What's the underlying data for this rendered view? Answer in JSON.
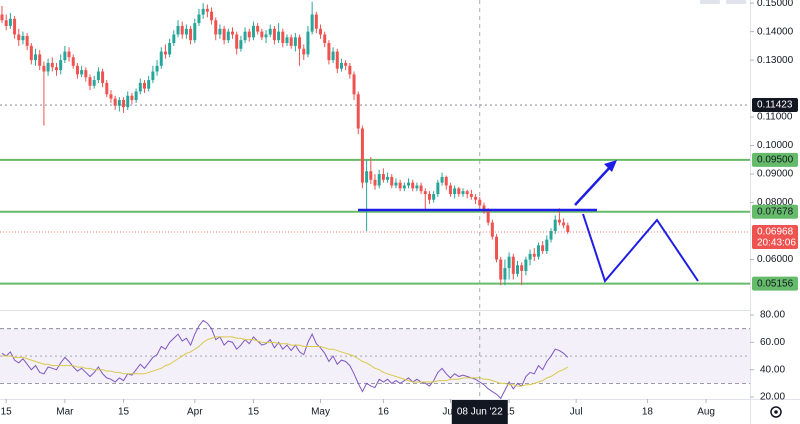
{
  "chart_data": {
    "type": "candlestick",
    "up_color": "#26a69a",
    "down_color": "#ef5350",
    "xlim": [
      "2022-02-14",
      "2022-08-11"
    ],
    "xticks": [
      {
        "value": "2022-02-15",
        "label": "15"
      },
      {
        "value": "2022-03-01",
        "label": "Mar"
      },
      {
        "value": "2022-03-15",
        "label": "15"
      },
      {
        "value": "2022-04-01",
        "label": "Apr"
      },
      {
        "value": "2022-04-15",
        "label": "15"
      },
      {
        "value": "2022-05-01",
        "label": "May"
      },
      {
        "value": "2022-05-16",
        "label": "16"
      },
      {
        "value": "2022-06-01",
        "label": "Jun"
      },
      {
        "value": "2022-06-15",
        "label": "15"
      },
      {
        "value": "2022-07-01",
        "label": "Jul"
      },
      {
        "value": "2022-07-18",
        "label": "18"
      },
      {
        "value": "2022-08-01",
        "label": "Aug"
      }
    ],
    "ylim": [
      0.0423,
      0.1511
    ],
    "yticks": [
      {
        "value": 0.15,
        "label": "0.15000"
      },
      {
        "value": 0.14,
        "label": "0.14000"
      },
      {
        "value": 0.13,
        "label": "0.13000"
      },
      {
        "value": 0.11,
        "label": "0.11000"
      },
      {
        "value": 0.1,
        "label": "0.10000"
      },
      {
        "value": 0.09,
        "label": "0.09000"
      },
      {
        "value": 0.08,
        "label": "0.08000"
      },
      {
        "value": 0.06,
        "label": "0.06000"
      }
    ],
    "levels": [
      {
        "value": 0.095,
        "label": "0.09500",
        "color": "#66bb6a"
      },
      {
        "value": 0.07678,
        "label": "0.07678",
        "color": "#66bb6a"
      },
      {
        "value": 0.05156,
        "label": "0.05156",
        "color": "#66bb6a"
      }
    ],
    "marker_line": {
      "value": 0.11423,
      "label": "0.11423",
      "color": "#131722"
    },
    "last_price": {
      "value": 0.06968,
      "label": "0.06968",
      "countdown": "20:43:06",
      "color": "#ef5350"
    },
    "crosshair": {
      "value": "2022-06-08",
      "label": "08 Jun '22"
    },
    "x": [
      "2022-02-14",
      "2022-02-15",
      "2022-02-16",
      "2022-02-17",
      "2022-02-18",
      "2022-02-19",
      "2022-02-20",
      "2022-02-21",
      "2022-02-22",
      "2022-02-23",
      "2022-02-24",
      "2022-02-25",
      "2022-02-26",
      "2022-02-27",
      "2022-02-28",
      "2022-03-01",
      "2022-03-02",
      "2022-03-03",
      "2022-03-04",
      "2022-03-05",
      "2022-03-06",
      "2022-03-07",
      "2022-03-08",
      "2022-03-09",
      "2022-03-10",
      "2022-03-11",
      "2022-03-12",
      "2022-03-13",
      "2022-03-14",
      "2022-03-15",
      "2022-03-16",
      "2022-03-17",
      "2022-03-18",
      "2022-03-19",
      "2022-03-20",
      "2022-03-21",
      "2022-03-22",
      "2022-03-23",
      "2022-03-24",
      "2022-03-25",
      "2022-03-26",
      "2022-03-27",
      "2022-03-28",
      "2022-03-29",
      "2022-03-30",
      "2022-03-31",
      "2022-04-01",
      "2022-04-02",
      "2022-04-03",
      "2022-04-04",
      "2022-04-05",
      "2022-04-06",
      "2022-04-07",
      "2022-04-08",
      "2022-04-09",
      "2022-04-10",
      "2022-04-11",
      "2022-04-12",
      "2022-04-13",
      "2022-04-14",
      "2022-04-15",
      "2022-04-16",
      "2022-04-17",
      "2022-04-18",
      "2022-04-19",
      "2022-04-20",
      "2022-04-21",
      "2022-04-22",
      "2022-04-23",
      "2022-04-24",
      "2022-04-25",
      "2022-04-26",
      "2022-04-27",
      "2022-04-28",
      "2022-04-29",
      "2022-04-30",
      "2022-05-01",
      "2022-05-02",
      "2022-05-03",
      "2022-05-04",
      "2022-05-05",
      "2022-05-06",
      "2022-05-07",
      "2022-05-08",
      "2022-05-09",
      "2022-05-10",
      "2022-05-11",
      "2022-05-12",
      "2022-05-13",
      "2022-05-14",
      "2022-05-15",
      "2022-05-16",
      "2022-05-17",
      "2022-05-18",
      "2022-05-19",
      "2022-05-20",
      "2022-05-21",
      "2022-05-22",
      "2022-05-23",
      "2022-05-24",
      "2022-05-25",
      "2022-05-26",
      "2022-05-27",
      "2022-05-28",
      "2022-05-29",
      "2022-05-30",
      "2022-05-31",
      "2022-06-01",
      "2022-06-02",
      "2022-06-03",
      "2022-06-04",
      "2022-06-05",
      "2022-06-06",
      "2022-06-07",
      "2022-06-08",
      "2022-06-09",
      "2022-06-10",
      "2022-06-11",
      "2022-06-12",
      "2022-06-13",
      "2022-06-14",
      "2022-06-15",
      "2022-06-16",
      "2022-06-17",
      "2022-06-18",
      "2022-06-19",
      "2022-06-20",
      "2022-06-21",
      "2022-06-22",
      "2022-06-23",
      "2022-06-24",
      "2022-06-25",
      "2022-06-26",
      "2022-06-27",
      "2022-06-28",
      "2022-06-29"
    ],
    "open": [
      0.146,
      0.144,
      0.142,
      0.1445,
      0.139,
      0.137,
      0.1385,
      0.135,
      0.13,
      0.132,
      0.128,
      0.126,
      0.129,
      0.1275,
      0.1265,
      0.13,
      0.133,
      0.131,
      0.128,
      0.125,
      0.1265,
      0.124,
      0.121,
      0.123,
      0.126,
      0.122,
      0.118,
      0.1165,
      0.114,
      0.116,
      0.1135,
      0.1175,
      0.116,
      0.119,
      0.122,
      0.12,
      0.123,
      0.126,
      0.128,
      0.133,
      0.132,
      0.136,
      0.139,
      0.142,
      0.139,
      0.141,
      0.137,
      0.143,
      0.146,
      0.148,
      0.147,
      0.144,
      0.139,
      0.141,
      0.137,
      0.14,
      0.139,
      0.134,
      0.137,
      0.14,
      0.138,
      0.142,
      0.14,
      0.138,
      0.139,
      0.141,
      0.137,
      0.14,
      0.136,
      0.138,
      0.135,
      0.138,
      0.134,
      0.132,
      0.14,
      0.146,
      0.141,
      0.139,
      0.136,
      0.13,
      0.133,
      0.127,
      0.129,
      0.128,
      0.125,
      0.118,
      0.106,
      0.087,
      0.091,
      0.088,
      0.086,
      0.09,
      0.088,
      0.089,
      0.086,
      0.087,
      0.085,
      0.086,
      0.087,
      0.085,
      0.086,
      0.084,
      0.083,
      0.081,
      0.083,
      0.087,
      0.089,
      0.086,
      0.083,
      0.085,
      0.083,
      0.084,
      0.083,
      0.082,
      0.081,
      0.079,
      0.077,
      0.073,
      0.068,
      0.06,
      0.053,
      0.057,
      0.061,
      0.055,
      0.058,
      0.056,
      0.06,
      0.062,
      0.061,
      0.065,
      0.063,
      0.067,
      0.07,
      0.074,
      0.073,
      0.072
    ],
    "high": [
      0.149,
      0.146,
      0.1465,
      0.1455,
      0.141,
      0.14,
      0.1395,
      0.136,
      0.134,
      0.1335,
      0.1295,
      0.1305,
      0.131,
      0.129,
      0.132,
      0.135,
      0.1345,
      0.132,
      0.129,
      0.128,
      0.1275,
      0.125,
      0.1245,
      0.1275,
      0.127,
      0.123,
      0.1195,
      0.1175,
      0.117,
      0.117,
      0.119,
      0.1185,
      0.12,
      0.1235,
      0.123,
      0.1245,
      0.128,
      0.13,
      0.1345,
      0.1355,
      0.1375,
      0.1405,
      0.144,
      0.1435,
      0.1425,
      0.142,
      0.1445,
      0.148,
      0.15,
      0.1495,
      0.1485,
      0.145,
      0.1425,
      0.142,
      0.141,
      0.1415,
      0.14,
      0.1385,
      0.1415,
      0.141,
      0.1435,
      0.143,
      0.141,
      0.1405,
      0.1425,
      0.142,
      0.143,
      0.141,
      0.139,
      0.139,
      0.1395,
      0.139,
      0.1355,
      0.142,
      0.1505,
      0.147,
      0.1425,
      0.14,
      0.137,
      0.1345,
      0.134,
      0.1305,
      0.13,
      0.129,
      0.126,
      0.119,
      0.107,
      0.095,
      0.096,
      0.09,
      0.0915,
      0.092,
      0.0905,
      0.09,
      0.0885,
      0.088,
      0.087,
      0.0885,
      0.088,
      0.087,
      0.087,
      0.085,
      0.084,
      0.084,
      0.088,
      0.0905,
      0.0895,
      0.087,
      0.086,
      0.0855,
      0.085,
      0.0845,
      0.0845,
      0.083,
      0.082,
      0.08,
      0.078,
      0.074,
      0.069,
      0.061,
      0.06,
      0.0625,
      0.062,
      0.0595,
      0.059,
      0.061,
      0.0635,
      0.064,
      0.066,
      0.0665,
      0.0685,
      0.071,
      0.0755,
      0.078,
      0.0745,
      0.073
    ],
    "low": [
      0.143,
      0.1405,
      0.141,
      0.1375,
      0.135,
      0.1355,
      0.1335,
      0.1285,
      0.128,
      0.1265,
      0.107,
      0.1245,
      0.126,
      0.1245,
      0.125,
      0.129,
      0.1295,
      0.127,
      0.1235,
      0.124,
      0.1225,
      0.1195,
      0.12,
      0.122,
      0.1205,
      0.117,
      0.115,
      0.1125,
      0.112,
      0.1115,
      0.1125,
      0.1145,
      0.115,
      0.118,
      0.1185,
      0.119,
      0.122,
      0.1245,
      0.127,
      0.1305,
      0.131,
      0.135,
      0.138,
      0.1375,
      0.1375,
      0.1355,
      0.136,
      0.142,
      0.1445,
      0.145,
      0.1425,
      0.137,
      0.1375,
      0.1355,
      0.136,
      0.1375,
      0.132,
      0.133,
      0.136,
      0.1365,
      0.137,
      0.139,
      0.137,
      0.136,
      0.138,
      0.1355,
      0.136,
      0.1345,
      0.135,
      0.134,
      0.133,
      0.128,
      0.13,
      0.131,
      0.139,
      0.1395,
      0.1375,
      0.1345,
      0.1285,
      0.129,
      0.1255,
      0.126,
      0.1265,
      0.1235,
      0.116,
      0.104,
      0.085,
      0.07,
      0.0865,
      0.0845,
      0.085,
      0.087,
      0.087,
      0.085,
      0.085,
      0.084,
      0.084,
      0.085,
      0.084,
      0.084,
      0.083,
      0.0775,
      0.0795,
      0.08,
      0.082,
      0.086,
      0.0845,
      0.082,
      0.0815,
      0.082,
      0.082,
      0.0815,
      0.081,
      0.0795,
      0.078,
      0.076,
      0.072,
      0.067,
      0.059,
      0.051,
      0.051,
      0.053,
      0.053,
      0.054,
      0.051,
      0.0545,
      0.058,
      0.0595,
      0.06,
      0.062,
      0.062,
      0.066,
      0.069,
      0.072,
      0.071,
      0.069
    ],
    "close": [
      0.144,
      0.142,
      0.1445,
      0.139,
      0.137,
      0.1385,
      0.135,
      0.13,
      0.132,
      0.128,
      0.126,
      0.129,
      0.1275,
      0.1265,
      0.13,
      0.133,
      0.131,
      0.128,
      0.125,
      0.1265,
      0.124,
      0.121,
      0.123,
      0.126,
      0.122,
      0.118,
      0.1165,
      0.114,
      0.116,
      0.1135,
      0.1175,
      0.116,
      0.119,
      0.122,
      0.12,
      0.123,
      0.126,
      0.128,
      0.133,
      0.132,
      0.136,
      0.139,
      0.142,
      0.139,
      0.141,
      0.137,
      0.143,
      0.146,
      0.148,
      0.147,
      0.144,
      0.139,
      0.141,
      0.137,
      0.14,
      0.139,
      0.134,
      0.137,
      0.14,
      0.138,
      0.142,
      0.14,
      0.138,
      0.139,
      0.141,
      0.137,
      0.14,
      0.136,
      0.138,
      0.135,
      0.138,
      0.134,
      0.132,
      0.14,
      0.146,
      0.141,
      0.139,
      0.136,
      0.13,
      0.133,
      0.127,
      0.129,
      0.128,
      0.125,
      0.118,
      0.106,
      0.087,
      0.091,
      0.088,
      0.086,
      0.09,
      0.088,
      0.089,
      0.086,
      0.087,
      0.085,
      0.086,
      0.087,
      0.085,
      0.086,
      0.084,
      0.083,
      0.081,
      0.083,
      0.087,
      0.089,
      0.086,
      0.083,
      0.085,
      0.083,
      0.084,
      0.083,
      0.082,
      0.081,
      0.079,
      0.077,
      0.073,
      0.068,
      0.06,
      0.053,
      0.057,
      0.061,
      0.055,
      0.058,
      0.056,
      0.06,
      0.062,
      0.061,
      0.065,
      0.063,
      0.067,
      0.07,
      0.074,
      0.073,
      0.072,
      0.06968
    ],
    "rsi": {
      "ylim": [
        19.3,
        82.2
      ],
      "yticks": [
        {
          "value": 80,
          "label": "80.00"
        },
        {
          "value": 60,
          "label": "60.00"
        },
        {
          "value": 40,
          "label": "40.00"
        },
        {
          "value": 20,
          "label": "20.00"
        }
      ],
      "bands": [
        30,
        70
      ],
      "mid": 50,
      "band_color": "#7e57c2",
      "series": [
        {
          "color": "#7e57c2",
          "values": [
            52,
            50,
            53,
            47,
            45,
            48,
            44,
            40,
            43,
            38,
            37,
            42,
            41,
            40,
            45,
            49,
            46,
            42,
            39,
            41,
            38,
            35,
            38,
            42,
            37,
            34,
            33,
            31,
            34,
            32,
            37,
            36,
            40,
            44,
            41,
            45,
            49,
            51,
            57,
            55,
            60,
            63,
            66,
            61,
            63,
            58,
            66,
            72,
            76,
            74,
            70,
            62,
            64,
            58,
            61,
            60,
            55,
            58,
            62,
            59,
            64,
            61,
            58,
            59,
            62,
            56,
            60,
            55,
            58,
            54,
            58,
            53,
            51,
            60,
            66,
            59,
            56,
            52,
            46,
            50,
            44,
            47,
            46,
            43,
            37,
            30,
            24,
            30,
            28,
            27,
            33,
            31,
            33,
            30,
            32,
            30,
            32,
            34,
            31,
            33,
            31,
            30,
            28,
            32,
            38,
            41,
            37,
            34,
            37,
            35,
            36,
            35,
            34,
            33,
            31,
            29,
            26,
            24,
            22,
            19,
            25,
            31,
            26,
            30,
            28,
            35,
            38,
            37,
            43,
            40,
            46,
            50,
            55,
            54,
            52,
            49
          ]
        },
        {
          "color": "#d9c94a",
          "values": [
            50,
            50,
            50,
            49,
            49,
            49,
            48,
            47,
            46,
            45,
            44,
            44,
            43,
            43,
            43,
            43,
            43,
            43,
            42,
            42,
            41,
            41,
            40,
            40,
            40,
            39,
            39,
            38,
            38,
            37,
            37,
            37,
            37,
            37,
            37,
            38,
            39,
            40,
            41,
            43,
            44,
            46,
            48,
            50,
            52,
            53,
            55,
            57,
            60,
            62,
            63,
            64,
            64,
            64,
            64,
            64,
            63,
            63,
            62,
            62,
            62,
            61,
            60,
            60,
            60,
            60,
            59,
            59,
            59,
            58,
            58,
            58,
            57,
            57,
            57,
            57,
            57,
            56,
            55,
            55,
            54,
            53,
            52,
            51,
            50,
            48,
            46,
            45,
            43,
            41,
            40,
            38,
            37,
            36,
            35,
            34,
            33,
            32,
            31,
            31,
            31,
            31,
            31,
            31,
            32,
            32,
            32,
            33,
            33,
            33,
            34,
            34,
            34,
            34,
            34,
            33,
            33,
            32,
            31,
            30,
            30,
            29,
            29,
            28,
            28,
            29,
            29,
            30,
            31,
            32,
            34,
            35,
            37,
            39,
            40,
            42
          ]
        }
      ]
    }
  }
}
